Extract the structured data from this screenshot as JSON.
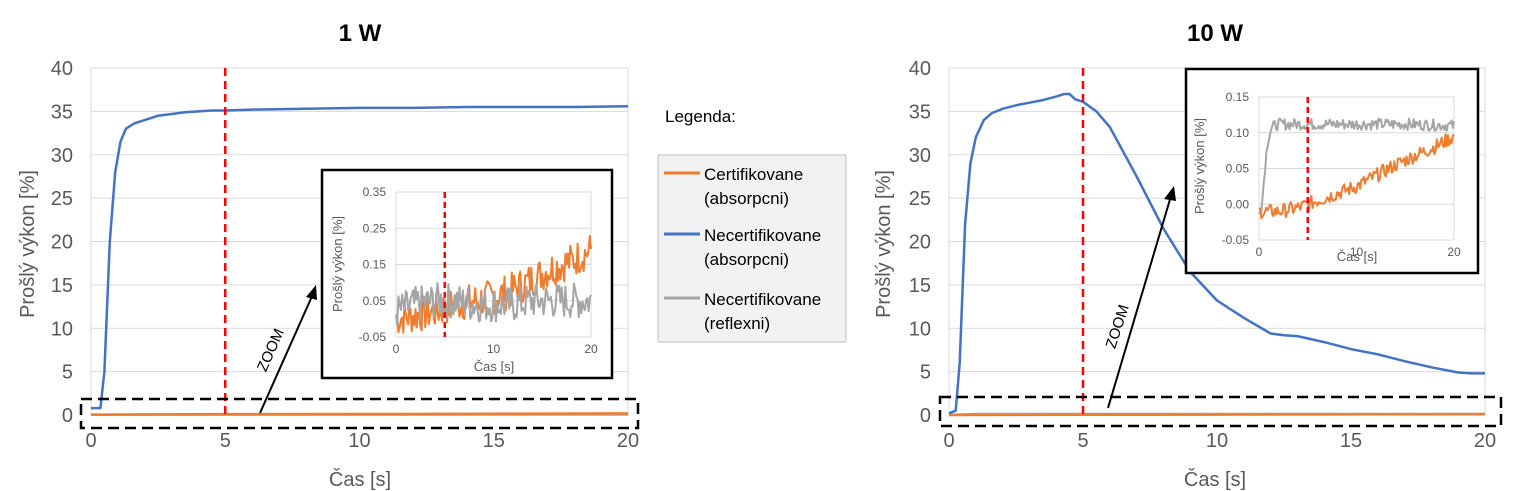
{
  "colors": {
    "certifikovane_absorpcni": "#ED7D31",
    "necertifikovane_absorpcni": "#4472C4",
    "necertifikovane_reflexni": "#A5A5A5",
    "marker": "#FF0000"
  },
  "legend": {
    "heading": "Legenda:",
    "items": [
      {
        "line1": "Certifikovane",
        "line2": "(absorpcni)",
        "color": "#ED7D31"
      },
      {
        "line1": "Necertifikovane",
        "line2": "(absorpcni)",
        "color": "#4472C4"
      },
      {
        "line1": "Necertifikovane",
        "line2": "(reflexni)",
        "color": "#A5A5A5"
      }
    ]
  },
  "zoom_label": "ZOOM",
  "chart_data": [
    {
      "type": "line",
      "title": "1 W",
      "xlabel": "Čas [s]",
      "ylabel": "Prošlý výkon [%]",
      "xlim": [
        0,
        20
      ],
      "ylim": [
        0,
        40
      ],
      "xticks": [
        0,
        5,
        10,
        15,
        20
      ],
      "yticks": [
        0,
        5,
        10,
        15,
        20,
        25,
        30,
        35,
        40
      ],
      "grid": "horizontal",
      "marker_x": 5,
      "series": [
        {
          "name": "Necertifikovane (absorpcni)",
          "color": "#4472C4",
          "x": [
            0,
            0.35,
            0.5,
            0.7,
            0.9,
            1.1,
            1.3,
            1.6,
            2,
            2.5,
            3,
            3.5,
            4,
            4.5,
            4.8,
            5,
            6,
            8,
            10,
            12,
            14,
            16,
            18,
            20
          ],
          "y": [
            0.8,
            0.8,
            5,
            20,
            28,
            31.5,
            33,
            33.6,
            34,
            34.5,
            34.7,
            34.9,
            35,
            35.1,
            35.1,
            35.1,
            35.2,
            35.3,
            35.4,
            35.4,
            35.5,
            35.5,
            35.5,
            35.6
          ]
        },
        {
          "name": "Certifikovane (absorpcni)",
          "color": "#ED7D31",
          "x": [
            0,
            5,
            10,
            15,
            20
          ],
          "y": [
            0.05,
            0.1,
            0.12,
            0.14,
            0.18
          ]
        },
        {
          "name": "Necertifikovane (reflexni)",
          "color": "#A5A5A5",
          "x": [
            0,
            5,
            10,
            15,
            20
          ],
          "y": [
            0.03,
            0.05,
            0.05,
            0.06,
            0.06
          ]
        }
      ],
      "inset": {
        "xlabel": "Čas [s]",
        "ylabel": "Prošlý výkon [%]",
        "xlim": [
          0,
          20
        ],
        "ylim": [
          -0.05,
          0.35
        ],
        "xticks": [
          0,
          10,
          20
        ],
        "yticks": [
          -0.05,
          0.05,
          0.15,
          0.25,
          0.35
        ],
        "ytick_labels": [
          "-0.05",
          "0.05",
          "0.15",
          "0.25",
          "0.35"
        ],
        "marker_x": 5,
        "series": [
          {
            "name": "Certifikovane (absorpcni)",
            "color": "#ED7D31",
            "x": [
              0,
              2,
              4,
              5,
              6,
              8,
              10,
              12,
              14,
              16,
              18,
              20
            ],
            "y": [
              0.0,
              0.01,
              0.02,
              0.03,
              0.04,
              0.05,
              0.06,
              0.08,
              0.11,
              0.14,
              0.16,
              0.19
            ],
            "noise": 0.05
          },
          {
            "name": "Necertifikovane (reflexni)",
            "color": "#A5A5A5",
            "x": [
              0,
              2,
              4,
              5,
              6,
              8,
              10,
              12,
              14,
              16,
              18,
              20
            ],
            "y": [
              0.02,
              0.04,
              0.05,
              0.05,
              0.05,
              0.04,
              0.04,
              0.04,
              0.05,
              0.05,
              0.05,
              0.05
            ],
            "noise": 0.05
          }
        ]
      }
    },
    {
      "type": "line",
      "title": "10 W",
      "xlabel": "Čas [s]",
      "ylabel": "Prošlý výkon [%]",
      "xlim": [
        0,
        20
      ],
      "ylim": [
        0,
        40
      ],
      "xticks": [
        0,
        5,
        10,
        15,
        20
      ],
      "yticks": [
        0,
        5,
        10,
        15,
        20,
        25,
        30,
        35,
        40
      ],
      "grid": "horizontal",
      "marker_x": 5,
      "series": [
        {
          "name": "Necertifikovane (absorpcni)",
          "color": "#4472C4",
          "x": [
            0,
            0.25,
            0.4,
            0.6,
            0.8,
            1,
            1.3,
            1.6,
            2,
            2.5,
            3,
            3.5,
            4,
            4.3,
            4.5,
            4.7,
            5,
            5.5,
            6,
            7,
            8,
            9,
            10,
            11,
            12,
            12.5,
            13,
            14,
            15,
            16,
            17,
            18,
            19,
            19.5,
            20
          ],
          "y": [
            0.2,
            0.5,
            6,
            22,
            29,
            32,
            34,
            34.8,
            35.3,
            35.7,
            36,
            36.3,
            36.7,
            37,
            37,
            36.4,
            36.1,
            35,
            33.2,
            27.5,
            21.5,
            16.5,
            13.2,
            11.2,
            9.4,
            9.2,
            9.1,
            8.4,
            7.6,
            7,
            6.2,
            5.5,
            4.9,
            4.8,
            4.8
          ]
        },
        {
          "name": "Certifikovane (absorpcni)",
          "color": "#ED7D31",
          "x": [
            0,
            5,
            10,
            15,
            20
          ],
          "y": [
            0.0,
            0.02,
            0.05,
            0.07,
            0.1
          ]
        },
        {
          "name": "Necertifikovane (reflexni)",
          "color": "#A5A5A5",
          "x": [
            0,
            1,
            5,
            10,
            15,
            20
          ],
          "y": [
            0.0,
            0.11,
            0.11,
            0.11,
            0.11,
            0.11
          ]
        }
      ],
      "inset": {
        "xlabel": "Čas [s]",
        "ylabel": "Prošlý výkon [%]",
        "xlim": [
          0,
          20
        ],
        "ylim": [
          -0.05,
          0.15
        ],
        "xticks": [
          0,
          10,
          20
        ],
        "yticks": [
          -0.05,
          0.0,
          0.05,
          0.1,
          0.15
        ],
        "ytick_labels": [
          "-0.05",
          "0.00",
          "0.05",
          "0.10",
          "0.15"
        ],
        "marker_x": 5,
        "series": [
          {
            "name": "Necertifikovane (reflexni)",
            "color": "#A5A5A5",
            "x": [
              0,
              0.3,
              0.6,
              0.9,
              1.2,
              1.6,
              2,
              5,
              10,
              15,
              20
            ],
            "y": [
              -0.01,
              0.0,
              0.05,
              0.09,
              0.105,
              0.11,
              0.112,
              0.112,
              0.112,
              0.112,
              0.11
            ],
            "noise": 0.008
          },
          {
            "name": "Certifikovane (absorpcni)",
            "color": "#ED7D31",
            "x": [
              0,
              2,
              4,
              5,
              6,
              8,
              10,
              12,
              14,
              16,
              18,
              20
            ],
            "y": [
              -0.01,
              -0.01,
              -0.005,
              0.0,
              0.005,
              0.015,
              0.025,
              0.04,
              0.055,
              0.068,
              0.08,
              0.095
            ],
            "noise": 0.01
          }
        ]
      }
    }
  ]
}
